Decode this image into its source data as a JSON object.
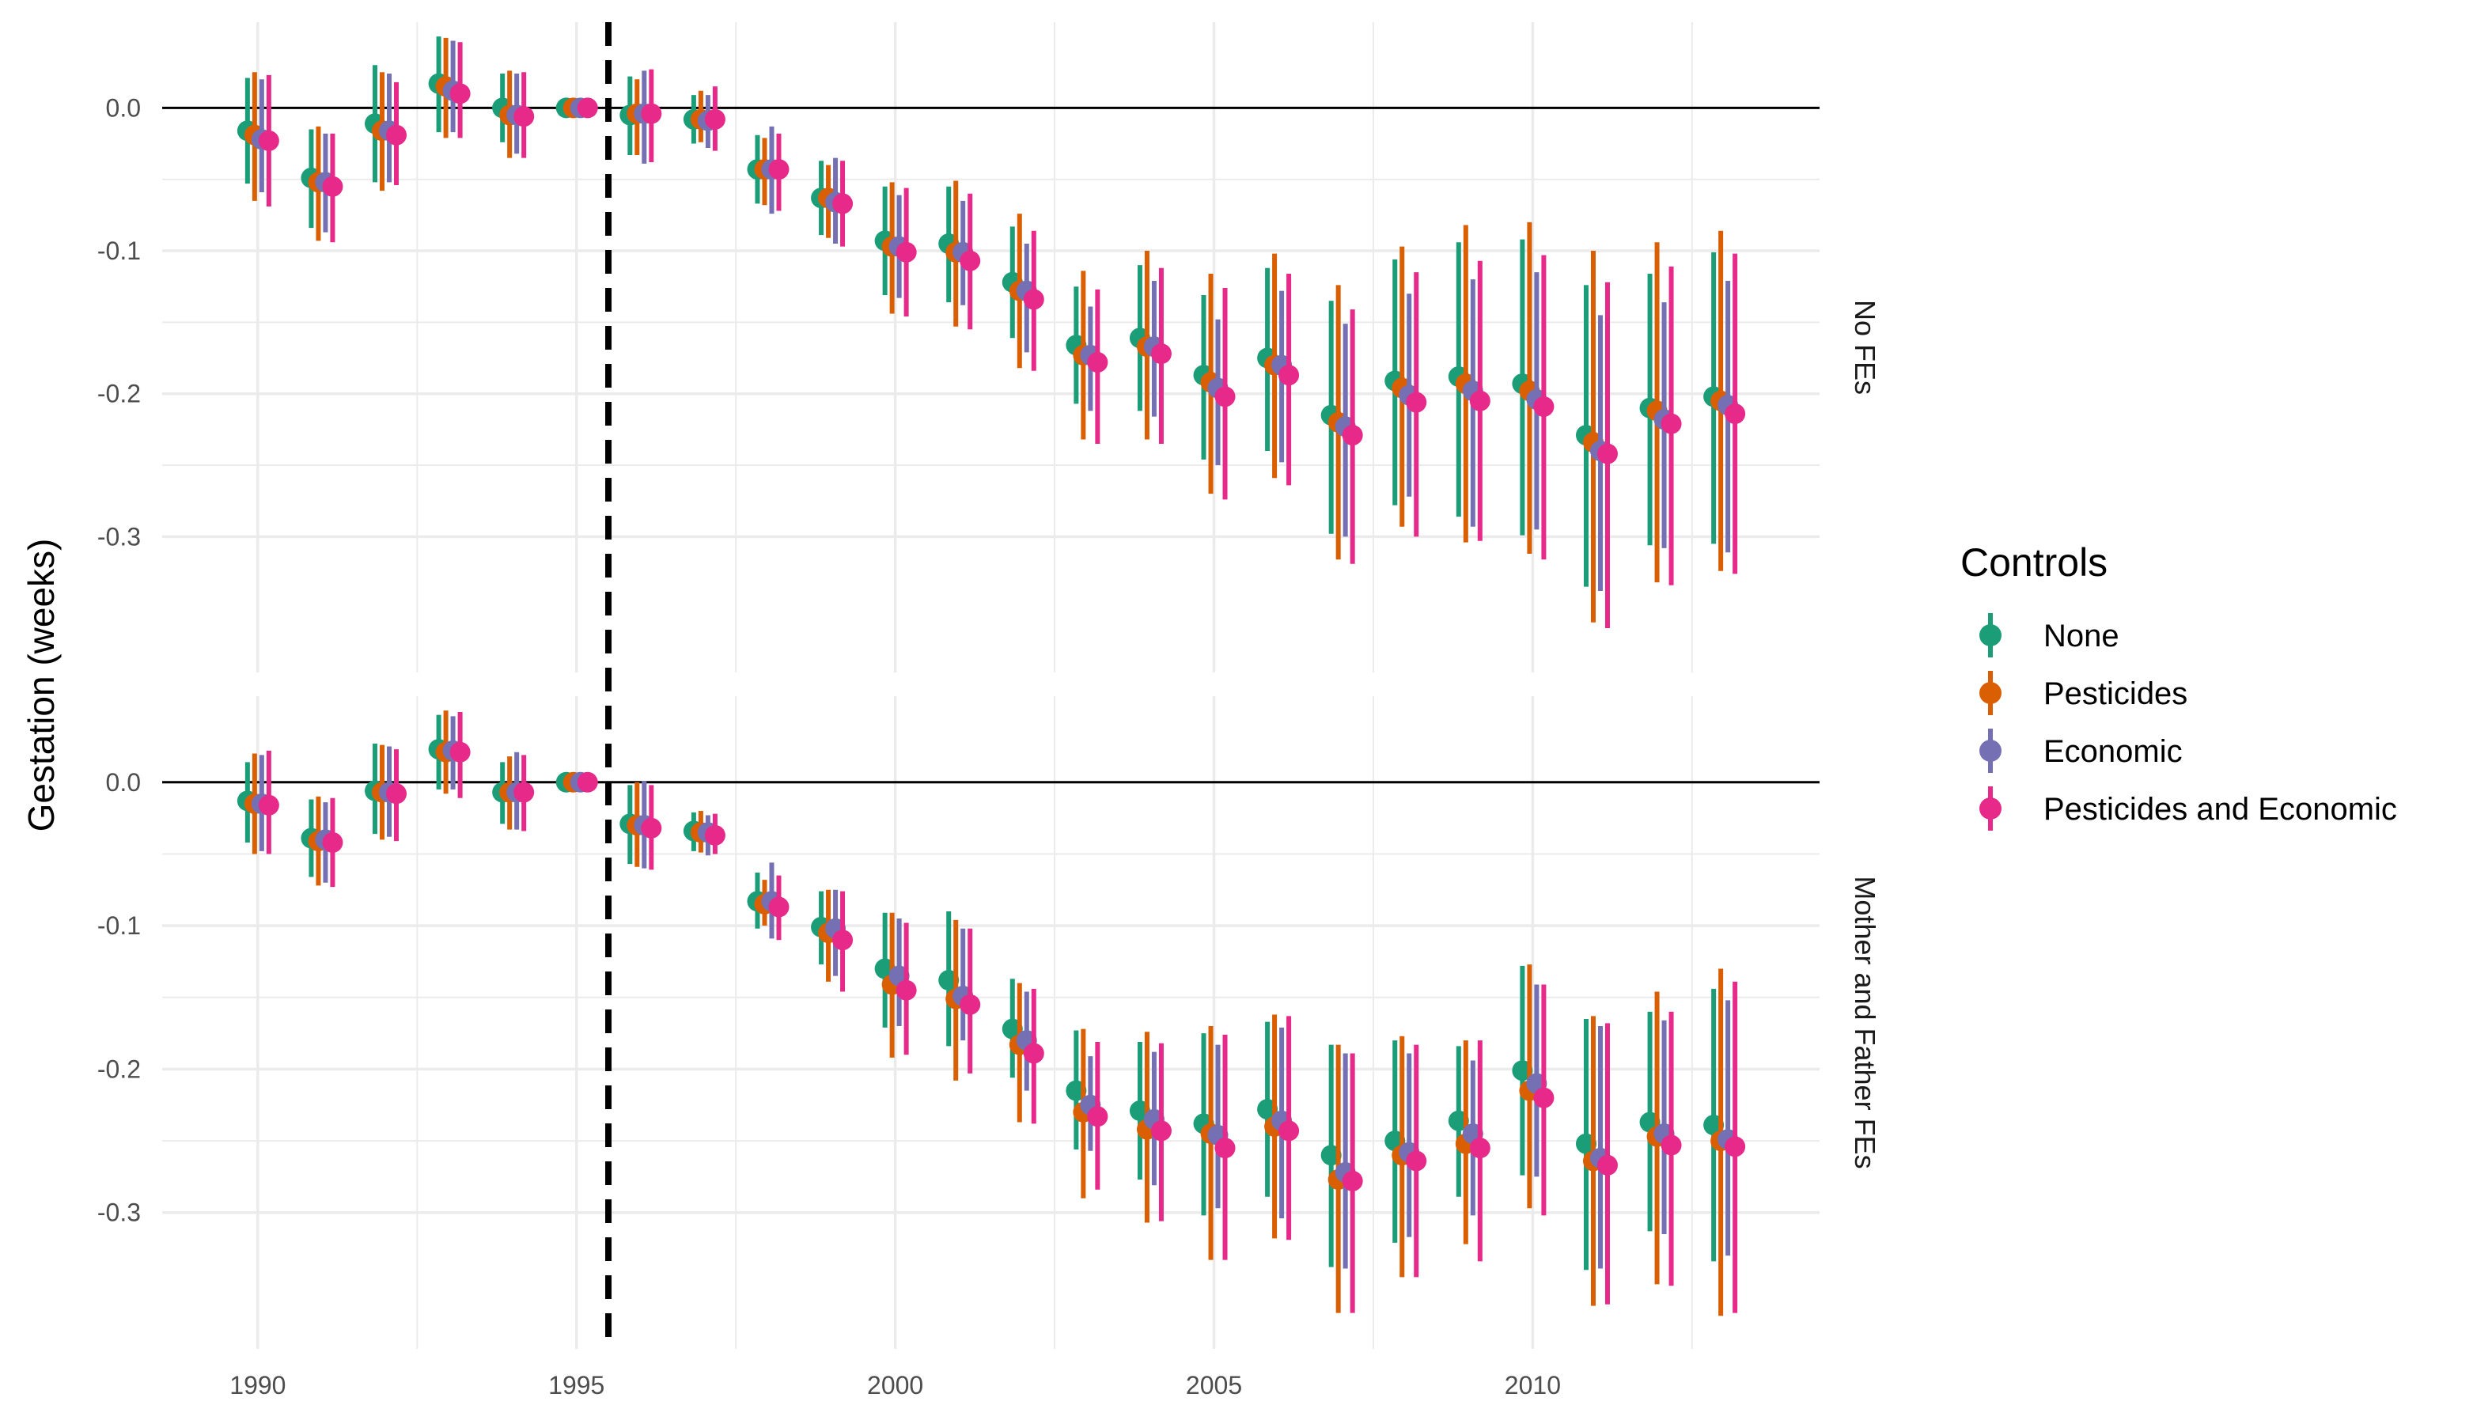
{
  "chart_data": {
    "type": "scatter",
    "subtype": "point-range (coefficient with confidence interval), faceted",
    "ylabel": "Gestation (weeks)",
    "xlabel": "",
    "x_ticks": [
      1990,
      1995,
      2000,
      2005,
      2010
    ],
    "y_ticks": [
      0.0,
      -0.1,
      -0.2,
      -0.3
    ],
    "y_tick_labels": [
      "0.0",
      "-0.1",
      "-0.2",
      "-0.3"
    ],
    "xlim": [
      1988.5,
      2014.5
    ],
    "reference_line_y": 0.0,
    "vertical_dashed_line_x": 1995.5,
    "grid": true,
    "legend": {
      "title": "Controls",
      "position": "right",
      "entries": [
        "None",
        "Pesticides",
        "Economic",
        "Pesticides and Economic"
      ]
    },
    "series_colors": {
      "None": "#1b9e77",
      "Pesticides": "#d95f02",
      "Economic": "#7570b3",
      "Pesticides and Economic": "#e7298a"
    },
    "years": [
      1990,
      1991,
      1992,
      1993,
      1994,
      1995,
      1996,
      1997,
      1998,
      1999,
      2000,
      2001,
      2002,
      2003,
      2004,
      2005,
      2006,
      2007,
      2008,
      2009,
      2010,
      2011,
      2012,
      2013
    ],
    "facets": [
      {
        "label": "No FEs",
        "ylim": [
          -0.395,
          0.06
        ],
        "series": [
          {
            "name": "None",
            "estimate": [
              -0.016,
              -0.049,
              -0.011,
              0.017,
              0.0,
              0.0,
              -0.005,
              -0.008,
              -0.043,
              -0.063,
              -0.093,
              -0.095,
              -0.122,
              -0.166,
              -0.161,
              -0.187,
              -0.175,
              -0.215,
              -0.191,
              -0.188,
              -0.193,
              -0.229,
              -0.21,
              -0.202
            ],
            "lower": [
              -0.053,
              -0.084,
              -0.052,
              -0.017,
              -0.024,
              0.0,
              -0.033,
              -0.025,
              -0.067,
              -0.089,
              -0.131,
              -0.136,
              -0.161,
              -0.207,
              -0.212,
              -0.246,
              -0.24,
              -0.298,
              -0.278,
              -0.286,
              -0.299,
              -0.335,
              -0.306,
              -0.305
            ],
            "upper": [
              0.021,
              -0.015,
              0.03,
              0.05,
              0.024,
              0.0,
              0.022,
              0.009,
              -0.019,
              -0.037,
              -0.055,
              -0.055,
              -0.083,
              -0.125,
              -0.11,
              -0.131,
              -0.112,
              -0.135,
              -0.106,
              -0.094,
              -0.092,
              -0.124,
              -0.116,
              -0.101
            ]
          },
          {
            "name": "Pesticides",
            "estimate": [
              -0.019,
              -0.052,
              -0.016,
              0.015,
              -0.005,
              0.0,
              -0.004,
              -0.008,
              -0.043,
              -0.063,
              -0.097,
              -0.101,
              -0.128,
              -0.173,
              -0.167,
              -0.192,
              -0.18,
              -0.22,
              -0.196,
              -0.193,
              -0.198,
              -0.234,
              -0.212,
              -0.205
            ],
            "lower": [
              -0.065,
              -0.093,
              -0.058,
              -0.021,
              -0.035,
              0.0,
              -0.033,
              -0.024,
              -0.068,
              -0.091,
              -0.144,
              -0.153,
              -0.182,
              -0.232,
              -0.232,
              -0.27,
              -0.259,
              -0.316,
              -0.293,
              -0.304,
              -0.312,
              -0.36,
              -0.332,
              -0.324
            ],
            "upper": [
              0.025,
              -0.013,
              0.025,
              0.049,
              0.026,
              0.0,
              0.02,
              0.012,
              -0.021,
              -0.04,
              -0.052,
              -0.051,
              -0.074,
              -0.114,
              -0.1,
              -0.116,
              -0.102,
              -0.124,
              -0.097,
              -0.082,
              -0.08,
              -0.1,
              -0.094,
              -0.086
            ]
          },
          {
            "name": "Economic",
            "estimate": [
              -0.022,
              -0.052,
              -0.016,
              0.012,
              -0.005,
              0.0,
              -0.004,
              -0.009,
              -0.043,
              -0.066,
              -0.097,
              -0.101,
              -0.128,
              -0.173,
              -0.167,
              -0.196,
              -0.18,
              -0.223,
              -0.201,
              -0.198,
              -0.204,
              -0.24,
              -0.218,
              -0.208
            ],
            "lower": [
              -0.059,
              -0.087,
              -0.052,
              -0.017,
              -0.032,
              0.0,
              -0.039,
              -0.028,
              -0.074,
              -0.095,
              -0.133,
              -0.138,
              -0.171,
              -0.212,
              -0.216,
              -0.25,
              -0.248,
              -0.3,
              -0.272,
              -0.293,
              -0.295,
              -0.338,
              -0.308,
              -0.311
            ],
            "upper": [
              0.02,
              -0.018,
              0.024,
              0.047,
              0.024,
              0.0,
              0.026,
              0.009,
              -0.013,
              -0.035,
              -0.061,
              -0.065,
              -0.095,
              -0.139,
              -0.121,
              -0.148,
              -0.128,
              -0.151,
              -0.13,
              -0.12,
              -0.115,
              -0.145,
              -0.136,
              -0.121
            ]
          },
          {
            "name": "Pesticides and Economic",
            "estimate": [
              -0.023,
              -0.055,
              -0.019,
              0.01,
              -0.006,
              0.0,
              -0.004,
              -0.008,
              -0.043,
              -0.067,
              -0.101,
              -0.107,
              -0.134,
              -0.178,
              -0.172,
              -0.202,
              -0.187,
              -0.229,
              -0.206,
              -0.205,
              -0.209,
              -0.242,
              -0.221,
              -0.214
            ],
            "lower": [
              -0.069,
              -0.094,
              -0.054,
              -0.021,
              -0.035,
              0.0,
              -0.038,
              -0.03,
              -0.072,
              -0.097,
              -0.146,
              -0.155,
              -0.184,
              -0.235,
              -0.235,
              -0.274,
              -0.264,
              -0.319,
              -0.3,
              -0.303,
              -0.316,
              -0.364,
              -0.334,
              -0.326
            ],
            "upper": [
              0.023,
              -0.018,
              0.018,
              0.046,
              0.025,
              0.0,
              0.027,
              0.015,
              -0.018,
              -0.037,
              -0.056,
              -0.06,
              -0.086,
              -0.127,
              -0.112,
              -0.126,
              -0.116,
              -0.141,
              -0.115,
              -0.107,
              -0.103,
              -0.122,
              -0.111,
              -0.102
            ]
          }
        ]
      },
      {
        "label": "Mother and Father FEs",
        "ylim": [
          -0.395,
          0.06
        ],
        "series": [
          {
            "name": "None",
            "estimate": [
              -0.013,
              -0.039,
              -0.006,
              0.023,
              -0.007,
              0.0,
              -0.029,
              -0.034,
              -0.083,
              -0.101,
              -0.13,
              -0.138,
              -0.172,
              -0.215,
              -0.229,
              -0.238,
              -0.228,
              -0.26,
              -0.25,
              -0.236,
              -0.201,
              -0.252,
              -0.237,
              -0.239
            ],
            "lower": [
              -0.042,
              -0.066,
              -0.036,
              -0.005,
              -0.029,
              0.0,
              -0.057,
              -0.048,
              -0.102,
              -0.127,
              -0.171,
              -0.184,
              -0.206,
              -0.256,
              -0.277,
              -0.302,
              -0.289,
              -0.338,
              -0.321,
              -0.289,
              -0.274,
              -0.34,
              -0.313,
              -0.334
            ],
            "upper": [
              0.014,
              -0.012,
              0.027,
              0.047,
              0.014,
              0.0,
              -0.002,
              -0.021,
              -0.063,
              -0.076,
              -0.091,
              -0.09,
              -0.137,
              -0.173,
              -0.181,
              -0.175,
              -0.167,
              -0.183,
              -0.18,
              -0.184,
              -0.128,
              -0.165,
              -0.16,
              -0.144
            ]
          },
          {
            "name": "Pesticides",
            "estimate": [
              -0.015,
              -0.041,
              -0.007,
              0.021,
              -0.007,
              0.0,
              -0.03,
              -0.035,
              -0.085,
              -0.105,
              -0.141,
              -0.151,
              -0.183,
              -0.23,
              -0.242,
              -0.245,
              -0.24,
              -0.277,
              -0.26,
              -0.252,
              -0.215,
              -0.264,
              -0.247,
              -0.25
            ],
            "lower": [
              -0.05,
              -0.072,
              -0.04,
              -0.008,
              -0.033,
              0.0,
              -0.059,
              -0.049,
              -0.1,
              -0.139,
              -0.192,
              -0.208,
              -0.237,
              -0.29,
              -0.307,
              -0.333,
              -0.318,
              -0.37,
              -0.345,
              -0.322,
              -0.297,
              -0.365,
              -0.35,
              -0.372
            ],
            "upper": [
              0.02,
              -0.01,
              0.026,
              0.05,
              0.018,
              0.0,
              0.0,
              -0.02,
              -0.068,
              -0.075,
              -0.091,
              -0.096,
              -0.14,
              -0.172,
              -0.174,
              -0.17,
              -0.162,
              -0.183,
              -0.177,
              -0.18,
              -0.127,
              -0.163,
              -0.146,
              -0.13
            ]
          },
          {
            "name": "Economic",
            "estimate": [
              -0.015,
              -0.04,
              -0.007,
              0.022,
              -0.007,
              0.0,
              -0.03,
              -0.035,
              -0.083,
              -0.102,
              -0.135,
              -0.149,
              -0.18,
              -0.225,
              -0.235,
              -0.246,
              -0.236,
              -0.272,
              -0.258,
              -0.245,
              -0.21,
              -0.262,
              -0.245,
              -0.249
            ],
            "lower": [
              -0.048,
              -0.07,
              -0.038,
              -0.005,
              -0.033,
              0.0,
              -0.06,
              -0.051,
              -0.109,
              -0.135,
              -0.17,
              -0.18,
              -0.215,
              -0.257,
              -0.281,
              -0.297,
              -0.304,
              -0.339,
              -0.317,
              -0.302,
              -0.275,
              -0.339,
              -0.315,
              -0.33
            ],
            "upper": [
              0.019,
              -0.014,
              0.025,
              0.046,
              0.021,
              0.0,
              0.001,
              -0.023,
              -0.056,
              -0.075,
              -0.095,
              -0.102,
              -0.146,
              -0.191,
              -0.188,
              -0.183,
              -0.171,
              -0.189,
              -0.189,
              -0.194,
              -0.141,
              -0.17,
              -0.166,
              -0.152
            ]
          },
          {
            "name": "Pesticides and Economic",
            "estimate": [
              -0.016,
              -0.042,
              -0.008,
              0.021,
              -0.007,
              0.0,
              -0.032,
              -0.037,
              -0.087,
              -0.11,
              -0.145,
              -0.155,
              -0.189,
              -0.233,
              -0.243,
              -0.255,
              -0.243,
              -0.278,
              -0.264,
              -0.255,
              -0.22,
              -0.267,
              -0.253,
              -0.254
            ],
            "lower": [
              -0.05,
              -0.073,
              -0.041,
              -0.011,
              -0.034,
              0.0,
              -0.061,
              -0.05,
              -0.11,
              -0.146,
              -0.19,
              -0.203,
              -0.238,
              -0.284,
              -0.306,
              -0.333,
              -0.319,
              -0.37,
              -0.345,
              -0.334,
              -0.302,
              -0.364,
              -0.351,
              -0.37
            ],
            "upper": [
              0.022,
              -0.011,
              0.023,
              0.049,
              0.019,
              0.0,
              -0.002,
              -0.022,
              -0.065,
              -0.076,
              -0.098,
              -0.102,
              -0.144,
              -0.181,
              -0.182,
              -0.176,
              -0.163,
              -0.189,
              -0.183,
              -0.18,
              -0.141,
              -0.168,
              -0.16,
              -0.139
            ]
          }
        ]
      }
    ]
  }
}
